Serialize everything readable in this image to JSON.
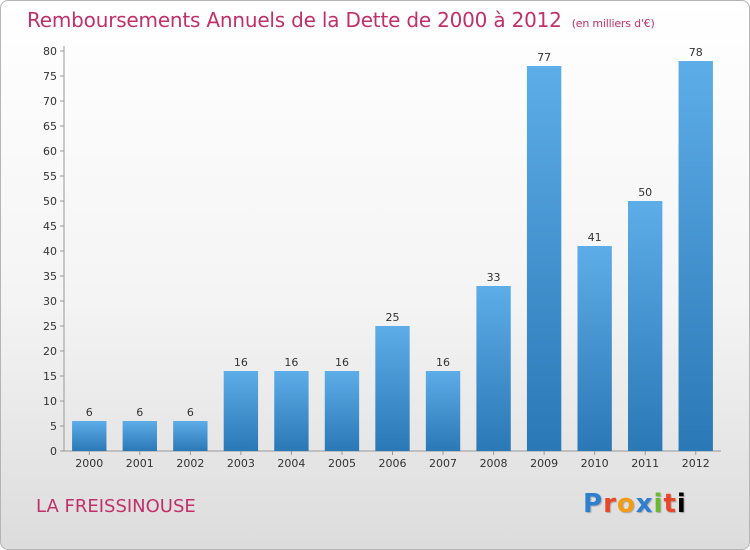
{
  "chart_data": {
    "type": "bar",
    "title": "Remboursements Annuels de la Dette de 2000 à 2012",
    "unit_note": "(en milliers d'€)",
    "categories": [
      "2000",
      "2001",
      "2002",
      "2003",
      "2004",
      "2005",
      "2006",
      "2007",
      "2008",
      "2009",
      "2010",
      "2011",
      "2012"
    ],
    "values": [
      6,
      6,
      6,
      16,
      16,
      16,
      25,
      16,
      33,
      77,
      41,
      50,
      78
    ],
    "ylim": [
      0,
      80
    ],
    "ytick_step": 5,
    "xlabel": "",
    "ylabel": "",
    "grid": false,
    "bar_color_light": "#5dade9",
    "bar_color_dark": "#2a78b5",
    "title_color": "#c0306a"
  },
  "footer": {
    "commune": "LA FREISSINOUSE",
    "logo_letters": [
      "P",
      "r",
      "o",
      "x",
      "i",
      "t",
      "i"
    ]
  }
}
